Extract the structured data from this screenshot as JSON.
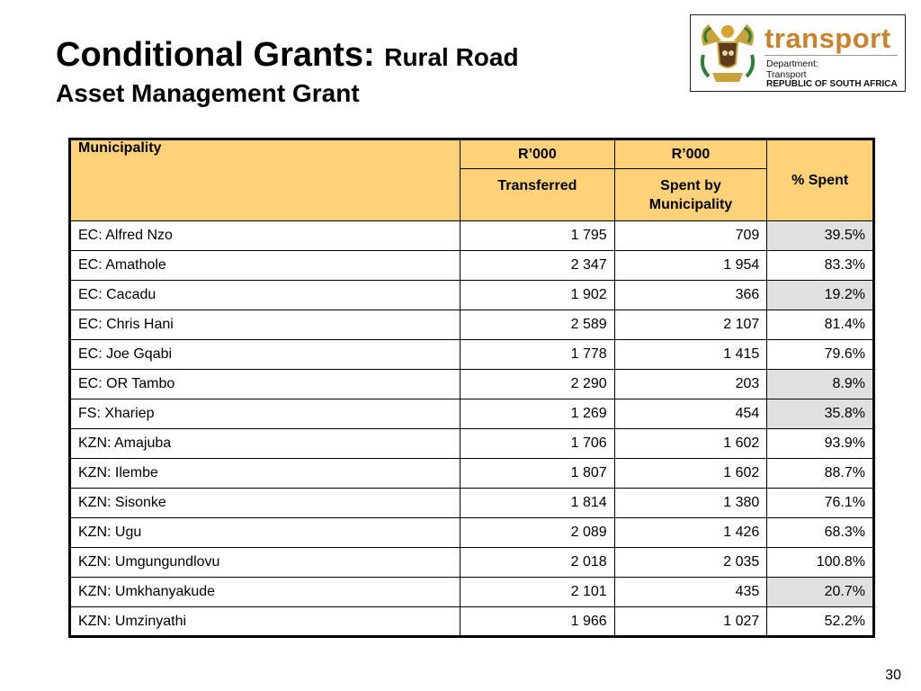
{
  "title": {
    "main": "Conditional Grants:",
    "sub_part1": "Rural Road",
    "sub_part2": "Asset Management Grant"
  },
  "logo": {
    "word": "transport",
    "dept_line1": "Department:",
    "dept_line2": "Transport",
    "country": "REPUBLIC OF SOUTH AFRICA"
  },
  "table": {
    "headers": {
      "municipality": "Municipality",
      "unit1": "R’000",
      "unit2": "R’000",
      "transferred": "Transferred",
      "spent": "Spent by Municipality",
      "pct_spent": "% Spent"
    },
    "rows": [
      {
        "municipality": "EC: Alfred Nzo",
        "transferred": "1 795",
        "spent": "709",
        "pct": "39.5%",
        "low": true
      },
      {
        "municipality": "EC: Amathole",
        "transferred": "2 347",
        "spent": "1 954",
        "pct": "83.3%",
        "low": false
      },
      {
        "municipality": "EC: Cacadu",
        "transferred": "1 902",
        "spent": "366",
        "pct": "19.2%",
        "low": true
      },
      {
        "municipality": "EC: Chris Hani",
        "transferred": "2 589",
        "spent": "2 107",
        "pct": "81.4%",
        "low": false
      },
      {
        "municipality": "EC: Joe Gqabi",
        "transferred": "1 778",
        "spent": "1 415",
        "pct": "79.6%",
        "low": false
      },
      {
        "municipality": "EC: OR Tambo",
        "transferred": "2 290",
        "spent": "203",
        "pct": "8.9%",
        "low": true
      },
      {
        "municipality": "FS: Xhariep",
        "transferred": "1 269",
        "spent": "454",
        "pct": "35.8%",
        "low": true
      },
      {
        "municipality": "KZN: Amajuba",
        "transferred": "1 706",
        "spent": "1 602",
        "pct": "93.9%",
        "low": false
      },
      {
        "municipality": "KZN: Ilembe",
        "transferred": "1 807",
        "spent": "1 602",
        "pct": "88.7%",
        "low": false
      },
      {
        "municipality": "KZN: Sisonke",
        "transferred": "1 814",
        "spent": "1 380",
        "pct": "76.1%",
        "low": false
      },
      {
        "municipality": "KZN: Ugu",
        "transferred": "2 089",
        "spent": "1 426",
        "pct": "68.3%",
        "low": false
      },
      {
        "municipality": "KZN: Umgungundlovu",
        "transferred": "2 018",
        "spent": "2 035",
        "pct": "100.8%",
        "low": false
      },
      {
        "municipality": "KZN: Umkhanyakude",
        "transferred": "2 101",
        "spent": "435",
        "pct": "20.7%",
        "low": true
      },
      {
        "municipality": "KZN: Umzinyathi",
        "transferred": "1 966",
        "spent": "1 027",
        "pct": "52.2%",
        "low": false
      }
    ]
  },
  "colors": {
    "header_fill": "#ffd27a",
    "low_spend_fill": "#e0e0e0",
    "logo_accent": "#c9832a"
  },
  "page_number": "30"
}
